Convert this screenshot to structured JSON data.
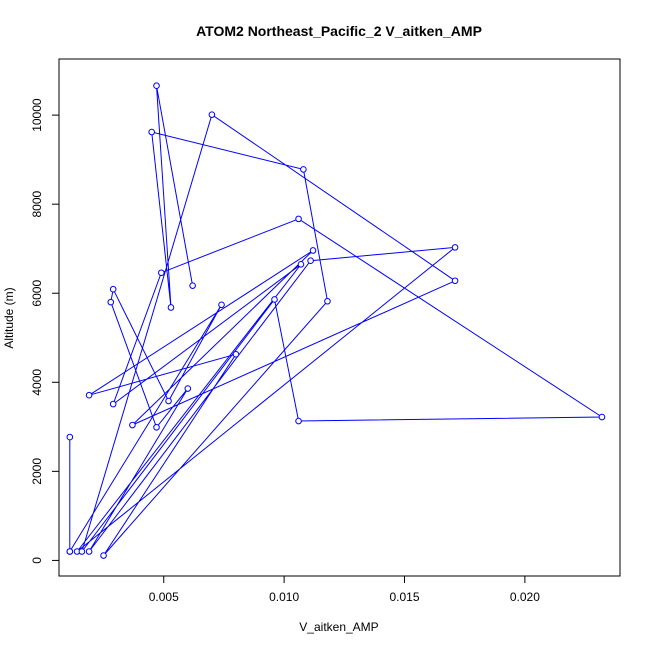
{
  "chart_data": {
    "type": "line",
    "title": "ATOM2 Northeast_Pacific_2 V_aitken_AMP",
    "xlabel": "V_aitken_AMP",
    "ylabel": "Altitude (m)",
    "xlim": [
      0.00065,
      0.02395
    ],
    "ylim": [
      -350,
      11260
    ],
    "x_ticks": [
      0.005,
      0.01,
      0.015,
      0.02
    ],
    "x_tick_labels": [
      "0.005",
      "0.010",
      "0.015",
      "0.020"
    ],
    "y_ticks": [
      0,
      2000,
      4000,
      6000,
      8000,
      10000
    ],
    "y_tick_labels": [
      "0",
      "2000",
      "4000",
      "6000",
      "8000",
      "10000"
    ],
    "grid": false,
    "legend": "none",
    "color": "#0000ff",
    "marker": "open-circle",
    "series": [
      {
        "points": [
          {
            "x": 0.0011,
            "y": 2770
          },
          {
            "x": 0.0011,
            "y": 200
          },
          {
            "x": 0.0011,
            "y": 200
          },
          {
            "x": 0.0074,
            "y": 5740
          },
          {
            "x": 0.0052,
            "y": 3580
          },
          {
            "x": 0.0029,
            "y": 6090
          },
          {
            "x": 0.0028,
            "y": 5800
          },
          {
            "x": 0.0047,
            "y": 2990
          },
          {
            "x": 0.006,
            "y": 3860
          },
          {
            "x": 0.0019,
            "y": 200
          },
          {
            "x": 0.0111,
            "y": 6730
          },
          {
            "x": 0.0171,
            "y": 7030
          },
          {
            "x": 0.0014,
            "y": 200
          },
          {
            "x": 0.0107,
            "y": 6650
          },
          {
            "x": 0.0029,
            "y": 3510
          },
          {
            "x": 0.0049,
            "y": 6460
          },
          {
            "x": 0.0106,
            "y": 7670
          },
          {
            "x": 0.0232,
            "y": 3220
          },
          {
            "x": 0.0106,
            "y": 3130
          },
          {
            "x": 0.0096,
            "y": 5860
          },
          {
            "x": 0.0016,
            "y": 200
          },
          {
            "x": 0.007,
            "y": 10010
          },
          {
            "x": 0.0171,
            "y": 6280
          },
          {
            "x": 0.0037,
            "y": 3040
          },
          {
            "x": 0.0112,
            "y": 6960
          },
          {
            "x": 0.0019,
            "y": 3710
          },
          {
            "x": 0.008,
            "y": 4630
          },
          {
            "x": 0.0025,
            "y": 110
          },
          {
            "x": 0.0118,
            "y": 5820
          },
          {
            "x": 0.0108,
            "y": 8780
          },
          {
            "x": 0.0045,
            "y": 9620
          },
          {
            "x": 0.0053,
            "y": 5680
          },
          {
            "x": 0.0047,
            "y": 10660
          },
          {
            "x": 0.0062,
            "y": 6170
          }
        ]
      }
    ]
  }
}
